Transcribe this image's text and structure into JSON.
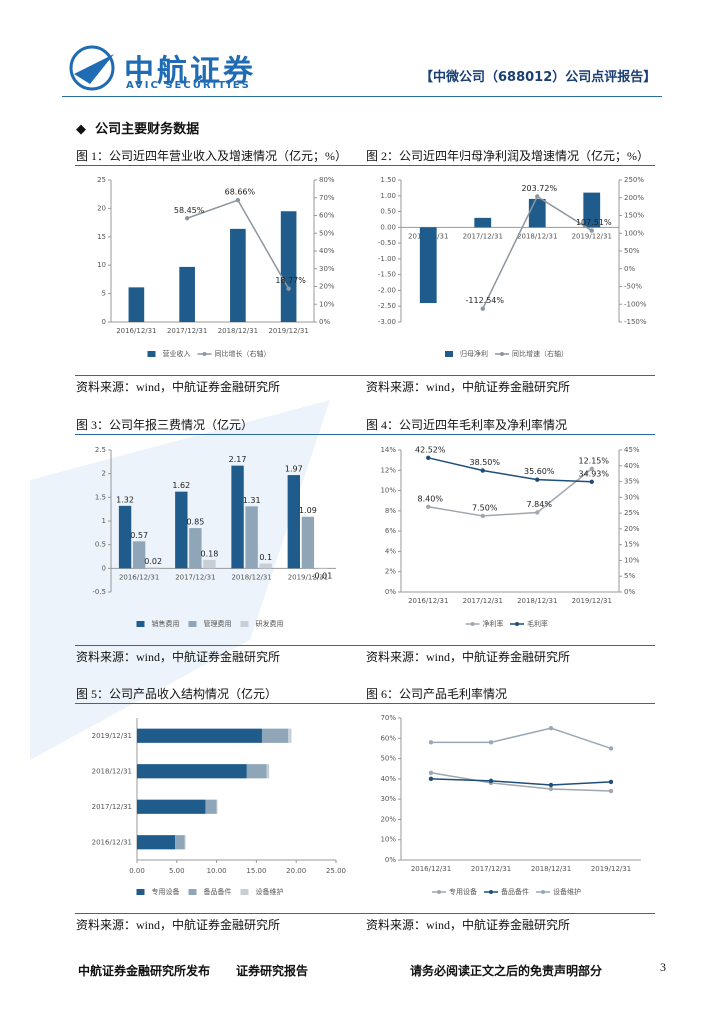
{
  "header": {
    "logo": "中航证券",
    "logo_en": "AVIC SECURITIES",
    "report": "【中微公司（688012）公司点评报告】"
  },
  "section": "公司主要财务数据",
  "chart_data": [
    {
      "type": "bar",
      "title": "图 1：公司近四年营业收入及增速情况（亿元；%）",
      "source": "资料来源：wind，中航证券金融研究所",
      "categories": [
        "2016/12/31",
        "2017/12/31",
        "2018/12/31",
        "2019/12/31"
      ],
      "series": [
        {
          "name": "营业收入",
          "color": "#1f5c8b",
          "values": [
            6.1,
            9.7,
            16.4,
            19.5
          ]
        },
        {
          "name": "同比增长（右轴）",
          "type": "line",
          "axis": "y2",
          "color": "#8c96a0",
          "values": [
            null,
            58.45,
            68.66,
            18.77
          ],
          "value_labels": [
            null,
            "58.45%",
            "68.66%",
            "18.77%"
          ]
        }
      ],
      "ylim": [
        0,
        25
      ],
      "yticks": [
        0,
        5,
        10,
        15,
        20,
        25
      ],
      "y2lim": [
        0,
        80
      ],
      "y2ticks": [
        {
          "value": 0,
          "label": "0%"
        },
        {
          "value": 10,
          "label": "10%"
        },
        {
          "value": 20,
          "label": "20%"
        },
        {
          "value": 30,
          "label": "30%"
        },
        {
          "value": 40,
          "label": "40%"
        },
        {
          "value": 50,
          "label": "50%"
        },
        {
          "value": 60,
          "label": "60%"
        },
        {
          "value": 70,
          "label": "70%"
        },
        {
          "value": 80,
          "label": "80%"
        }
      ]
    },
    {
      "type": "bar",
      "title": "图 2：公司近四年归母净利润及增速情况（亿元；%）",
      "source": "资料来源：wind，中航证券金融研究所",
      "categories": [
        "2016/12/31",
        "2017/12/31",
        "2018/12/31",
        "2019/12/31"
      ],
      "series": [
        {
          "name": "归母净利",
          "color": "#1f5c8b",
          "values": [
            -2.4,
            0.3,
            0.9,
            1.1
          ]
        },
        {
          "name": "同比增速（右轴）",
          "type": "line",
          "axis": "y2",
          "color": "#8c96a0",
          "values": [
            null,
            -112.54,
            203.72,
            107.51
          ],
          "value_labels": [
            null,
            "-112.54%",
            "203.72%",
            "107.51%"
          ]
        }
      ],
      "ylim": [
        -3,
        1.5
      ],
      "yticks": [
        {
          "value": -3,
          "label": "-3.00"
        },
        {
          "value": -2.5,
          "label": "-2.50"
        },
        {
          "value": -2,
          "label": "-2.00"
        },
        {
          "value": -1.5,
          "label": "-1.50"
        },
        {
          "value": -1,
          "label": "-1.00"
        },
        {
          "value": -0.5,
          "label": "-0.50"
        },
        {
          "value": 0,
          "label": "0.00"
        },
        {
          "value": 0.5,
          "label": "0.50"
        },
        {
          "value": 1,
          "label": "1.00"
        },
        {
          "value": 1.5,
          "label": "1.50"
        }
      ],
      "y2lim": [
        -150,
        250
      ],
      "y2ticks": [
        {
          "value": -150,
          "label": "-150%"
        },
        {
          "value": -100,
          "label": "-100%"
        },
        {
          "value": -50,
          "label": "-50%"
        },
        {
          "value": 0,
          "label": "0%"
        },
        {
          "value": 50,
          "label": "50%"
        },
        {
          "value": 100,
          "label": "100%"
        },
        {
          "value": 150,
          "label": "150%"
        },
        {
          "value": 200,
          "label": "200%"
        },
        {
          "value": 250,
          "label": "250%"
        }
      ]
    },
    {
      "type": "bar",
      "title": "图 3：公司年报三费情况（亿元）",
      "source": "资料来源：wind，中航证券金融研究所",
      "categories": [
        "2016/12/31",
        "2017/12/31",
        "2018/12/31",
        "2019/12/31"
      ],
      "series": [
        {
          "name": "销售费用",
          "color": "#1f5c8b",
          "values": [
            1.32,
            1.62,
            2.17,
            1.97
          ]
        },
        {
          "name": "管理费用",
          "color": "#8fa5b8",
          "values": [
            0.57,
            0.85,
            1.31,
            1.09
          ]
        },
        {
          "name": "研发费用",
          "color": "#c6cfd6",
          "values": [
            0.02,
            0.18,
            0.1,
            -0.01
          ]
        }
      ],
      "data_labels": true,
      "ylim": [
        -0.5,
        2.5
      ],
      "yticks": [
        -0.5,
        0,
        0.5,
        1,
        1.5,
        2,
        2.5
      ]
    },
    {
      "type": "line",
      "title": "图 4：公司近四年毛利率及净利率情况",
      "source": "资料来源：wind，中航证券金融研究所",
      "categories": [
        "2016/12/31",
        "2017/12/31",
        "2018/12/31",
        "2019/12/31"
      ],
      "series": [
        {
          "name": "净利率",
          "color": "#a0a7ae",
          "values": [
            8.4,
            7.5,
            7.84,
            12.15
          ],
          "value_labels": [
            "8.40%",
            "7.50%",
            "7.84%",
            "12.15%"
          ]
        },
        {
          "name": "毛利率",
          "axis": "y2",
          "color": "#1f4e79",
          "values": [
            42.52,
            38.5,
            35.6,
            34.93
          ],
          "value_labels": [
            "42.52%",
            "38.50%",
            "35.60%",
            "34.93%"
          ]
        }
      ],
      "ylim": [
        0,
        14
      ],
      "yticks": [
        {
          "value": 0,
          "label": "0%"
        },
        {
          "value": 2,
          "label": "2%"
        },
        {
          "value": 4,
          "label": "4%"
        },
        {
          "value": 6,
          "label": "6%"
        },
        {
          "value": 8,
          "label": "8%"
        },
        {
          "value": 10,
          "label": "10%"
        },
        {
          "value": 12,
          "label": "12%"
        },
        {
          "value": 14,
          "label": "14%"
        }
      ],
      "y2lim": [
        0,
        45
      ],
      "y2ticks": [
        {
          "value": 0,
          "label": "0%"
        },
        {
          "value": 5,
          "label": "5%"
        },
        {
          "value": 10,
          "label": "10%"
        },
        {
          "value": 15,
          "label": "15%"
        },
        {
          "value": 20,
          "label": "20%"
        },
        {
          "value": 25,
          "label": "25%"
        },
        {
          "value": 30,
          "label": "30%"
        },
        {
          "value": 35,
          "label": "35%"
        },
        {
          "value": 40,
          "label": "40%"
        },
        {
          "value": 45,
          "label": "45%"
        }
      ]
    },
    {
      "type": "barh",
      "title": "图 5：公司产品收入结构情况（亿元）",
      "source": "资料来源：wind，中航证券金融研究所",
      "categories": [
        "2019/12/31",
        "2018/12/31",
        "2017/12/31",
        "2016/12/31"
      ],
      "series": [
        {
          "name": "专用设备",
          "color": "#1f5c8b",
          "values": [
            15.7,
            13.8,
            8.6,
            4.8
          ]
        },
        {
          "name": "备品备件",
          "color": "#8fa5b8",
          "values": [
            3.3,
            2.5,
            1.4,
            1.2
          ]
        },
        {
          "name": "设备维护",
          "color": "#c6cfd6",
          "values": [
            0.4,
            0.3,
            0.1,
            0.1
          ]
        }
      ],
      "xlim": [
        0,
        25
      ],
      "xticks": [
        {
          "value": 0,
          "label": "0.00"
        },
        {
          "value": 5,
          "label": "5.00"
        },
        {
          "value": 10,
          "label": "10.00"
        },
        {
          "value": 15,
          "label": "15.00"
        },
        {
          "value": 20,
          "label": "20.00"
        },
        {
          "value": 25,
          "label": "25.00"
        }
      ]
    },
    {
      "type": "line",
      "title": "图 6：公司产品毛利率情况",
      "source": "资料来源：wind，中航证券金融研究所",
      "categories": [
        "2016/12/31",
        "2017/12/31",
        "2018/12/31",
        "2019/12/31"
      ],
      "series": [
        {
          "name": "专用设备",
          "color": "#a0a7ae",
          "values": [
            43,
            38,
            35,
            34
          ]
        },
        {
          "name": "备品备件",
          "color": "#1f4e79",
          "values": [
            40,
            39,
            37,
            38.5
          ]
        },
        {
          "name": "设备维护",
          "color": "#9aa8b6",
          "values": [
            58,
            58,
            65,
            55
          ]
        }
      ],
      "ylim": [
        0,
        70
      ],
      "yticks": [
        {
          "value": 0,
          "label": "0%"
        },
        {
          "value": 10,
          "label": "10%"
        },
        {
          "value": 20,
          "label": "20%"
        },
        {
          "value": 30,
          "label": "30%"
        },
        {
          "value": 40,
          "label": "40%"
        },
        {
          "value": 50,
          "label": "50%"
        },
        {
          "value": 60,
          "label": "60%"
        },
        {
          "value": 70,
          "label": "70%"
        }
      ]
    }
  ],
  "footer": {
    "left": "中航证券金融研究所发布",
    "middle": "证券研究报告",
    "right": "请务必阅读正文之后的免责声明部分",
    "page": "3"
  }
}
